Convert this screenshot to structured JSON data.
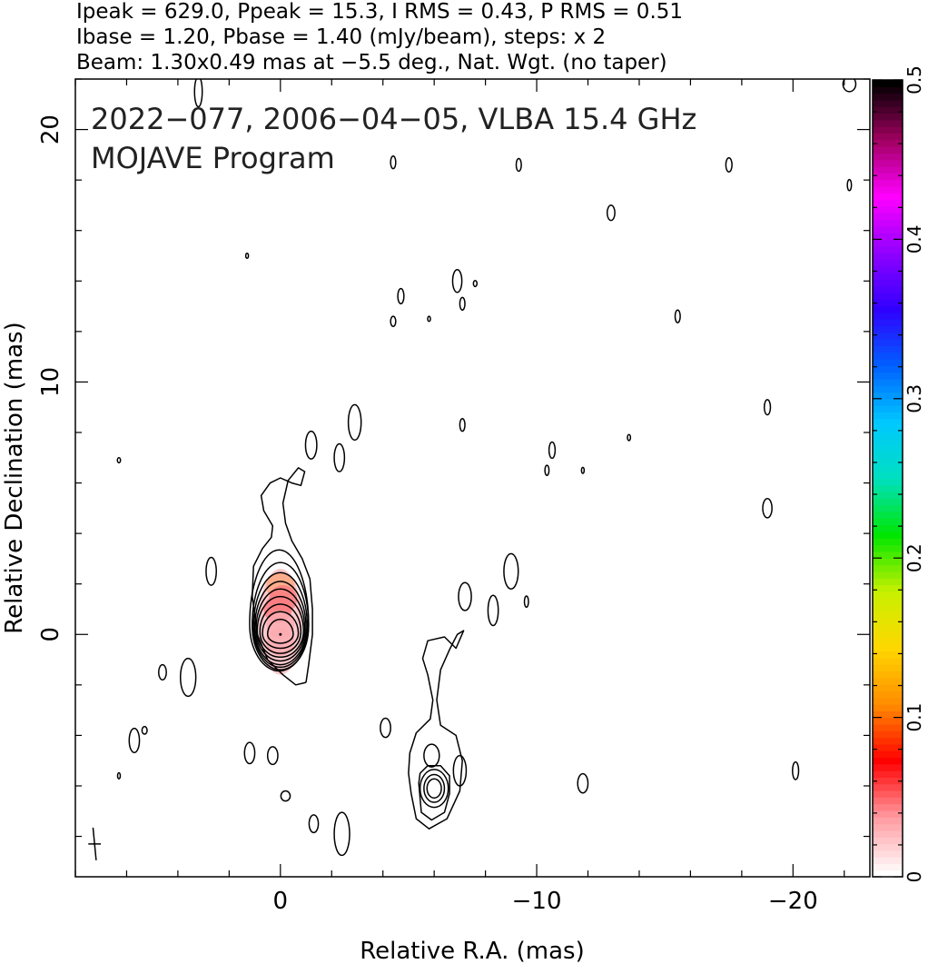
{
  "header": {
    "line1": "Ipeak = 629.0, Ppeak = 15.3, I RMS = 0.43, P RMS = 0.51",
    "line2": "Ibase = 1.20, Pbase = 1.40 (mJy/beam), steps: x 2",
    "line3": "Beam: 1.30x0.49 mas at −5.5 deg., Nat. Wgt. (no taper)"
  },
  "chart_data": {
    "type": "contour",
    "title": "2022−077, 2006−04−05, VLBA 15.4 GHz",
    "subtitle": "MOJAVE Program",
    "xlabel": "Relative R.A. (mas)",
    "ylabel": "Relative Declination (mas)",
    "xlim": [
      8.0,
      -23.0
    ],
    "ylim": [
      -9.6,
      22.0
    ],
    "x_ticks": [
      0,
      -10,
      -20
    ],
    "x_tick_labels": [
      "0",
      "−10",
      "−20"
    ],
    "y_ticks": [
      0,
      10,
      20
    ],
    "y_tick_labels": [
      "0",
      "10",
      "20"
    ],
    "colorbar": {
      "min": 0,
      "max": 0.5,
      "ticks": [
        0,
        0.1,
        0.2,
        0.3,
        0.4,
        0.5
      ],
      "tick_labels": [
        "0",
        "0.1",
        "0.2",
        "0.3",
        "0.4",
        "0.5"
      ],
      "colormap": [
        "#ffffff",
        "#ff9aa0",
        "#ff0000",
        "#ff8c00",
        "#ffd700",
        "#c8f000",
        "#00e600",
        "#00e0c0",
        "#00c8ff",
        "#0060ff",
        "#3000ff",
        "#9000ff",
        "#ff00ff",
        "#a00060",
        "#000000"
      ]
    },
    "beam": {
      "major_mas": 1.3,
      "minor_mas": 0.49,
      "pa_deg": -5.5
    },
    "core": {
      "x": 0.0,
      "y": 0.0
    },
    "fractional_polarization_patch": [
      {
        "x": 0.0,
        "y": 1.9,
        "value": 0.12
      },
      {
        "x": -0.1,
        "y": 1.4,
        "value": 0.08
      },
      {
        "x": 0.1,
        "y": 1.0,
        "value": 0.06
      },
      {
        "x": 0.0,
        "y": 0.4,
        "value": 0.03
      },
      {
        "x": 0.0,
        "y": -0.3,
        "value": 0.03
      }
    ],
    "contours": {
      "base_mJy_per_beam": 1.2,
      "step_factor": 2,
      "core_levels": [
        {
          "cx": 0.0,
          "cy": 0.0,
          "rx": 0.5,
          "ry_up": 0.6,
          "ry_down": 0.35
        },
        {
          "cx": 0.0,
          "cy": 0.05,
          "rx": 0.7,
          "ry_up": 0.85,
          "ry_down": 0.6
        },
        {
          "cx": 0.0,
          "cy": 0.1,
          "rx": 0.8,
          "ry_up": 1.1,
          "ry_down": 0.85
        },
        {
          "cx": 0.0,
          "cy": 0.15,
          "rx": 0.9,
          "ry_up": 1.35,
          "ry_down": 1.05
        },
        {
          "cx": 0.0,
          "cy": 0.2,
          "rx": 0.95,
          "ry_up": 1.6,
          "ry_down": 1.25
        },
        {
          "cx": 0.0,
          "cy": 0.25,
          "rx": 1.0,
          "ry_up": 1.85,
          "ry_down": 1.45
        },
        {
          "cx": 0.0,
          "cy": 0.3,
          "rx": 1.05,
          "ry_up": 2.15,
          "ry_down": 1.6
        },
        {
          "cx": 0.0,
          "cy": 0.35,
          "rx": 1.1,
          "ry_up": 2.5,
          "ry_down": 1.75
        },
        {
          "cx": 0.05,
          "cy": 0.4,
          "rx": 1.15,
          "ry_up": 2.95,
          "ry_down": 1.85
        }
      ],
      "outer_paths": [
        [
          [
            -1.0,
            -1.9
          ],
          [
            -0.6,
            -2.0
          ],
          [
            -0.1,
            -1.6
          ],
          [
            0.5,
            -1.0
          ],
          [
            0.9,
            0.0
          ],
          [
            1.1,
            1.5
          ],
          [
            1.05,
            2.7
          ],
          [
            0.7,
            3.4
          ],
          [
            0.35,
            3.85
          ],
          [
            0.3,
            4.3
          ],
          [
            0.65,
            4.9
          ],
          [
            0.75,
            5.5
          ],
          [
            0.4,
            6.0
          ],
          [
            0.0,
            6.2
          ],
          [
            -0.45,
            6.0
          ],
          [
            -0.8,
            5.9
          ],
          [
            -0.95,
            6.45
          ],
          [
            -0.7,
            6.6
          ],
          [
            -0.3,
            6.1
          ],
          [
            -0.1,
            5.2
          ],
          [
            -0.2,
            4.4
          ],
          [
            -0.45,
            3.7
          ],
          [
            -0.85,
            3.0
          ],
          [
            -1.15,
            2.2
          ],
          [
            -1.25,
            1.0
          ],
          [
            -1.25,
            0.0
          ],
          [
            -1.1,
            -1.2
          ],
          [
            -1.0,
            -1.9
          ]
        ]
      ],
      "jet_paths": [
        [
          [
            -5.1,
            -6.3
          ],
          [
            -5.3,
            -7.3
          ],
          [
            -5.8,
            -7.7
          ],
          [
            -6.5,
            -7.3
          ],
          [
            -7.0,
            -6.2
          ],
          [
            -7.1,
            -5.0
          ],
          [
            -6.85,
            -4.0
          ],
          [
            -6.25,
            -3.6
          ],
          [
            -6.1,
            -2.6
          ],
          [
            -6.25,
            -1.4
          ],
          [
            -6.6,
            -0.6
          ],
          [
            -6.9,
            0.0
          ],
          [
            -7.15,
            0.15
          ],
          [
            -6.85,
            -0.55
          ],
          [
            -6.4,
            -0.1
          ],
          [
            -5.75,
            -0.25
          ],
          [
            -5.55,
            -0.95
          ],
          [
            -5.75,
            -1.6
          ],
          [
            -5.95,
            -2.6
          ],
          [
            -5.85,
            -3.35
          ],
          [
            -5.3,
            -3.9
          ],
          [
            -5.05,
            -4.7
          ],
          [
            -5.0,
            -5.5
          ],
          [
            -5.1,
            -6.3
          ]
        ],
        [
          [
            -5.4,
            -5.9
          ],
          [
            -5.5,
            -7.05
          ],
          [
            -5.9,
            -7.35
          ],
          [
            -6.4,
            -7.05
          ],
          [
            -6.6,
            -6.3
          ],
          [
            -6.6,
            -5.6
          ],
          [
            -6.25,
            -5.2
          ],
          [
            -5.75,
            -5.2
          ],
          [
            -5.45,
            -5.5
          ],
          [
            -5.4,
            -5.9
          ]
        ]
      ],
      "jet_ellipses": [
        {
          "cx": -6.0,
          "cy": -6.1,
          "rx": 0.55,
          "ry": 0.75
        },
        {
          "cx": -6.0,
          "cy": -6.1,
          "rx": 0.4,
          "ry": 0.55
        },
        {
          "cx": -6.0,
          "cy": -6.1,
          "rx": 0.28,
          "ry": 0.38
        },
        {
          "cx": -5.9,
          "cy": -4.8,
          "rx": 0.3,
          "ry": 0.45
        },
        {
          "cx": -7.0,
          "cy": -5.4,
          "rx": 0.25,
          "ry": 0.6
        }
      ],
      "blobs": [
        {
          "cx": 3.2,
          "cy": 21.5,
          "rx": 0.15,
          "ry": 0.6
        },
        {
          "cx": -4.4,
          "cy": 18.7,
          "rx": 0.1,
          "ry": 0.25
        },
        {
          "cx": -9.3,
          "cy": 18.6,
          "rx": 0.1,
          "ry": 0.25
        },
        {
          "cx": -17.5,
          "cy": 18.6,
          "rx": 0.12,
          "ry": 0.28
        },
        {
          "cx": -22.2,
          "cy": 17.8,
          "rx": 0.08,
          "ry": 0.22
        },
        {
          "cx": -12.9,
          "cy": 16.7,
          "rx": 0.15,
          "ry": 0.3
        },
        {
          "cx": 1.3,
          "cy": 15.0,
          "rx": 0.05,
          "ry": 0.1
        },
        {
          "cx": -6.9,
          "cy": 14.0,
          "rx": 0.18,
          "ry": 0.45
        },
        {
          "cx": -7.6,
          "cy": 13.9,
          "rx": 0.07,
          "ry": 0.12
        },
        {
          "cx": -4.7,
          "cy": 13.4,
          "rx": 0.12,
          "ry": 0.3
        },
        {
          "cx": -7.1,
          "cy": 13.1,
          "rx": 0.1,
          "ry": 0.25
        },
        {
          "cx": -5.8,
          "cy": 12.5,
          "rx": 0.04,
          "ry": 0.1
        },
        {
          "cx": -4.4,
          "cy": 12.4,
          "rx": 0.1,
          "ry": 0.2
        },
        {
          "cx": -15.5,
          "cy": 12.6,
          "rx": 0.1,
          "ry": 0.25
        },
        {
          "cx": -19.0,
          "cy": 9.0,
          "rx": 0.12,
          "ry": 0.3
        },
        {
          "cx": -2.9,
          "cy": 8.4,
          "rx": 0.25,
          "ry": 0.7
        },
        {
          "cx": -7.1,
          "cy": 8.3,
          "rx": 0.1,
          "ry": 0.25
        },
        {
          "cx": -13.6,
          "cy": 7.8,
          "rx": 0.06,
          "ry": 0.12
        },
        {
          "cx": -1.2,
          "cy": 7.5,
          "rx": 0.22,
          "ry": 0.55
        },
        {
          "cx": -2.3,
          "cy": 7.0,
          "rx": 0.2,
          "ry": 0.55
        },
        {
          "cx": -10.6,
          "cy": 7.3,
          "rx": 0.12,
          "ry": 0.32
        },
        {
          "cx": -10.4,
          "cy": 6.5,
          "rx": 0.08,
          "ry": 0.2
        },
        {
          "cx": -11.8,
          "cy": 6.5,
          "rx": 0.05,
          "ry": 0.12
        },
        {
          "cx": 6.3,
          "cy": 6.9,
          "rx": 0.06,
          "ry": 0.1
        },
        {
          "cx": -19.0,
          "cy": 5.0,
          "rx": 0.18,
          "ry": 0.38
        },
        {
          "cx": 2.7,
          "cy": 2.5,
          "rx": 0.2,
          "ry": 0.55
        },
        {
          "cx": -9.0,
          "cy": 2.5,
          "rx": 0.28,
          "ry": 0.7
        },
        {
          "cx": -7.2,
          "cy": 1.5,
          "rx": 0.25,
          "ry": 0.55
        },
        {
          "cx": -8.3,
          "cy": 0.95,
          "rx": 0.2,
          "ry": 0.6
        },
        {
          "cx": -9.6,
          "cy": 1.3,
          "rx": 0.08,
          "ry": 0.22
        },
        {
          "cx": 4.6,
          "cy": -1.5,
          "rx": 0.15,
          "ry": 0.3
        },
        {
          "cx": 3.6,
          "cy": -1.7,
          "rx": 0.3,
          "ry": 0.75
        },
        {
          "cx": 5.7,
          "cy": -4.2,
          "rx": 0.2,
          "ry": 0.48
        },
        {
          "cx": 5.3,
          "cy": -3.8,
          "rx": 0.1,
          "ry": 0.15
        },
        {
          "cx": 1.2,
          "cy": -4.7,
          "rx": 0.2,
          "ry": 0.42
        },
        {
          "cx": 0.3,
          "cy": -4.8,
          "rx": 0.2,
          "ry": 0.35
        },
        {
          "cx": -4.1,
          "cy": -3.7,
          "rx": 0.2,
          "ry": 0.38
        },
        {
          "cx": -11.8,
          "cy": -5.9,
          "rx": 0.2,
          "ry": 0.38
        },
        {
          "cx": -20.1,
          "cy": -5.4,
          "rx": 0.12,
          "ry": 0.35
        },
        {
          "cx": 6.3,
          "cy": -5.6,
          "rx": 0.05,
          "ry": 0.12
        },
        {
          "cx": -0.2,
          "cy": -6.4,
          "rx": 0.18,
          "ry": 0.2
        },
        {
          "cx": -1.3,
          "cy": -7.5,
          "rx": 0.18,
          "ry": 0.35
        },
        {
          "cx": -2.4,
          "cy": -7.9,
          "rx": 0.3,
          "ry": 0.85
        },
        {
          "cx": -22.2,
          "cy": 21.8,
          "rx": 0.25,
          "ry": 0.3
        }
      ]
    }
  }
}
